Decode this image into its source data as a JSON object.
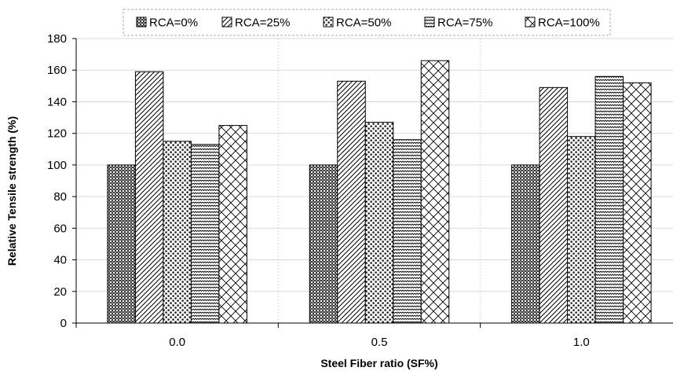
{
  "chart_data": {
    "type": "bar",
    "categories": [
      "0.0",
      "0.5",
      "1.0"
    ],
    "series": [
      {
        "name": "RCA=0%",
        "values": [
          100,
          100,
          100
        ]
      },
      {
        "name": "RCA=25%",
        "values": [
          159,
          153,
          149
        ]
      },
      {
        "name": "RCA=50%",
        "values": [
          115,
          127,
          118
        ]
      },
      {
        "name": "RCA=75%",
        "values": [
          113,
          116,
          156
        ]
      },
      {
        "name": "RCA=100%",
        "values": [
          125,
          166,
          152
        ]
      }
    ],
    "title": "",
    "xlabel": "Steel Fiber ratio (SF%)",
    "ylabel": "Relative Tensile strength (%)",
    "ylim": [
      0,
      180
    ],
    "yticks": [
      "0",
      "20",
      "40",
      "60",
      "80",
      "100",
      "120",
      "140",
      "160",
      "180"
    ],
    "grid": true,
    "legend_position": "top"
  }
}
